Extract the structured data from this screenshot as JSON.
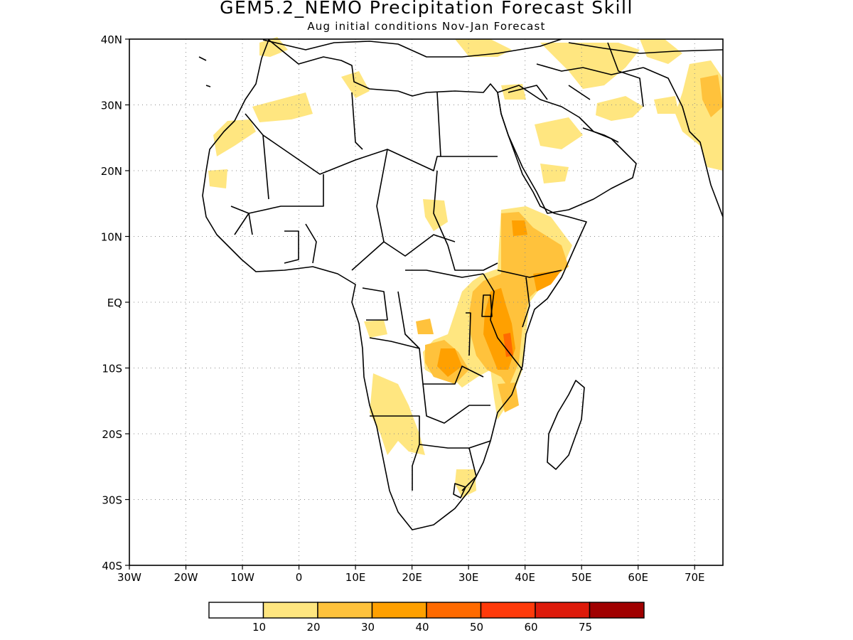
{
  "title": "GEM5.2_NEMO Precipitation Forecast Skill",
  "subtitle": "Aug initial conditions  Nov-Jan Forecast",
  "map": {
    "lat_labels": [
      "40N",
      "30N",
      "20N",
      "10N",
      "EQ",
      "10S",
      "20S",
      "30S",
      "40S"
    ],
    "lon_labels": [
      "30W",
      "20W",
      "10W",
      "0",
      "10E",
      "20E",
      "30E",
      "40E",
      "50E",
      "60E",
      "70E"
    ],
    "lon_range": [
      -30,
      75
    ],
    "lat_range": [
      -40,
      40
    ],
    "grid": true
  },
  "colorbar": {
    "colors": [
      "#ffffff",
      "#ffe680",
      "#ffc23c",
      "#ffa000",
      "#ff6a00",
      "#ff3a0a",
      "#dd1a0a",
      "#a00000"
    ],
    "labels": [
      "10",
      "20",
      "30",
      "40",
      "50",
      "60",
      "75"
    ]
  }
}
